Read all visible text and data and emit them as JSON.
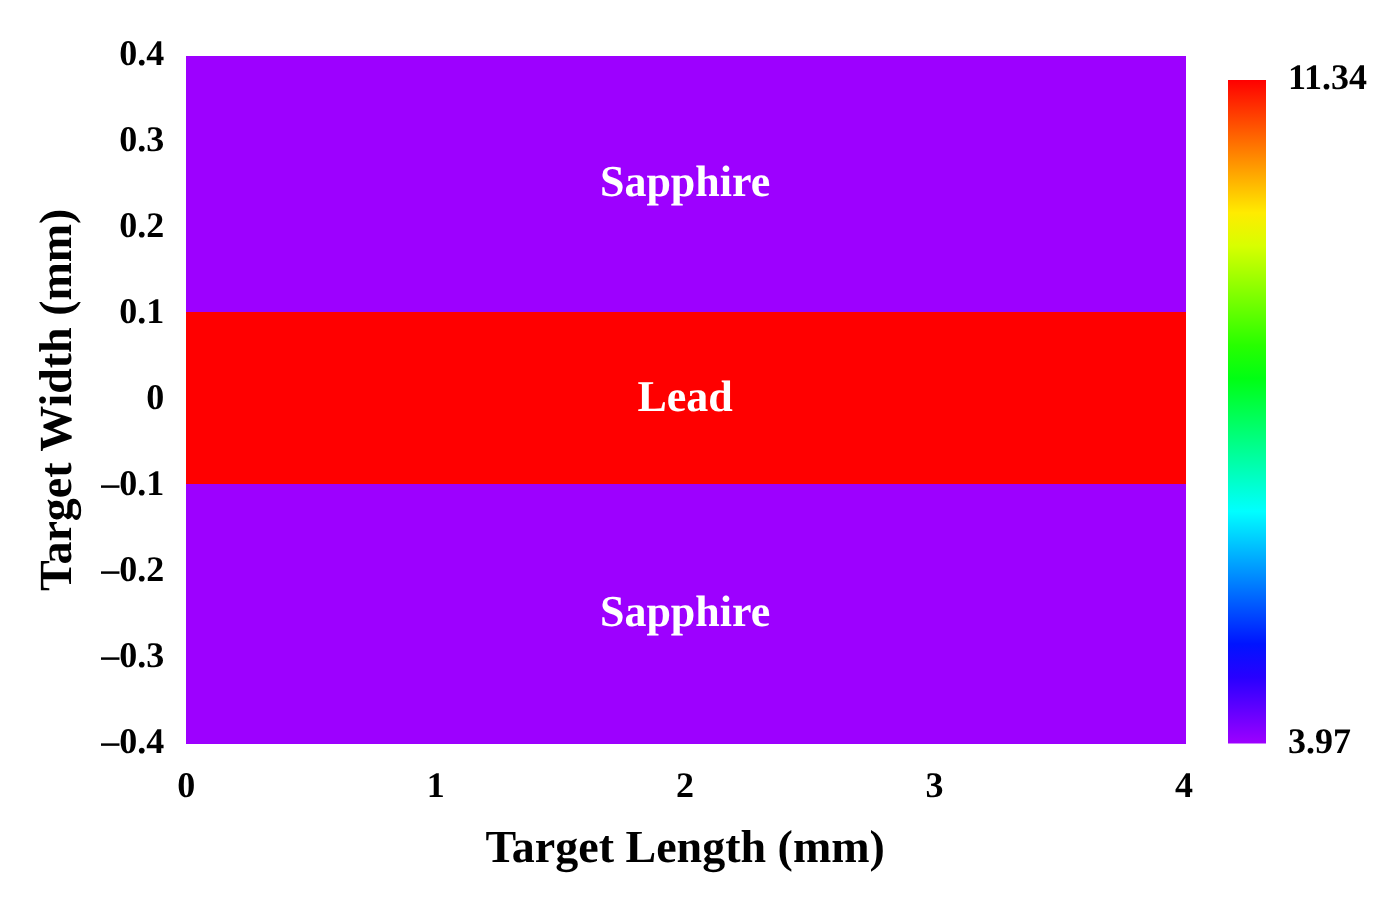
{
  "chart_data": {
    "type": "heatmap",
    "xlabel": "Target Length (mm)",
    "ylabel": "Target Width (mm)",
    "xlim": [
      0,
      4
    ],
    "ylim": [
      -0.4,
      0.4
    ],
    "xticks": [
      0,
      1,
      2,
      3,
      4
    ],
    "yticks": [
      {
        "value": -0.4,
        "label": "–0.4"
      },
      {
        "value": -0.3,
        "label": "–0.3"
      },
      {
        "value": -0.2,
        "label": "–0.2"
      },
      {
        "value": -0.1,
        "label": "–0.1"
      },
      0,
      0.1,
      0.2,
      0.3,
      0.4
    ],
    "cells": [
      [
        3.97
      ],
      [
        3.97
      ],
      [
        3.97
      ],
      [
        11.34
      ],
      [
        11.34
      ],
      [
        3.97
      ],
      [
        3.97
      ],
      [
        3.97
      ]
    ],
    "clim": [
      3.97,
      11.34
    ],
    "cticks": [
      3.97,
      11.34
    ],
    "annotations": [
      "Sapphire",
      "Lead",
      "Sapphire"
    ]
  }
}
